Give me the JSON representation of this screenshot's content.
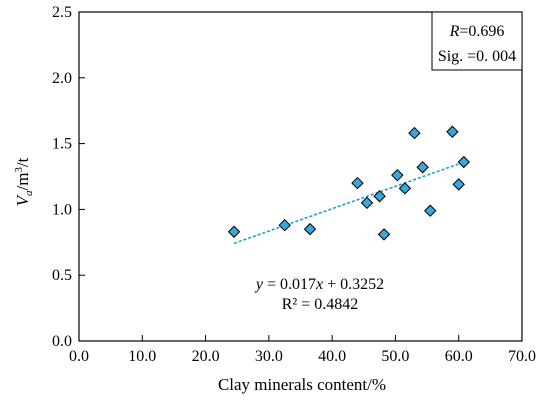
{
  "chart_data": {
    "type": "scatter",
    "xlabel": "Clay minerals content/%",
    "ylabel": "V_a/m³/t",
    "xlim": [
      0,
      70
    ],
    "ylim": [
      0,
      2.5
    ],
    "x_ticks": [
      "0.0",
      "10.0",
      "20.0",
      "30.0",
      "40.0",
      "50.0",
      "60.0",
      "70.0"
    ],
    "y_ticks": [
      "0.0",
      "0.5",
      "1.0",
      "1.5",
      "2.0",
      "2.5"
    ],
    "grid": false,
    "points": [
      {
        "x": 24.5,
        "y": 0.83
      },
      {
        "x": 32.5,
        "y": 0.88
      },
      {
        "x": 36.5,
        "y": 0.85
      },
      {
        "x": 44.0,
        "y": 1.2
      },
      {
        "x": 45.5,
        "y": 1.05
      },
      {
        "x": 47.5,
        "y": 1.1
      },
      {
        "x": 48.2,
        "y": 0.81
      },
      {
        "x": 50.3,
        "y": 1.26
      },
      {
        "x": 51.5,
        "y": 1.16
      },
      {
        "x": 53.0,
        "y": 1.58
      },
      {
        "x": 54.3,
        "y": 1.32
      },
      {
        "x": 55.5,
        "y": 0.99
      },
      {
        "x": 59.0,
        "y": 1.59
      },
      {
        "x": 60.0,
        "y": 1.19
      },
      {
        "x": 60.8,
        "y": 1.36
      }
    ],
    "trendline": {
      "slope": 0.017,
      "intercept": 0.3252,
      "x_range": [
        24.5,
        60.8
      ]
    },
    "point_color": "#3aa6dc",
    "trend_color": "#1aa0d8",
    "stats_box": {
      "r_label": "R",
      "r_value": "=0.696",
      "sig": "Sig. =0. 004",
      "position": "top-right"
    },
    "equation": {
      "line1_prefix": "y",
      "line1_mid": " = 0.017",
      "line1_x": "x",
      "line1_suffix": " + 0.3252",
      "line2": "R² = 0.4842"
    }
  }
}
